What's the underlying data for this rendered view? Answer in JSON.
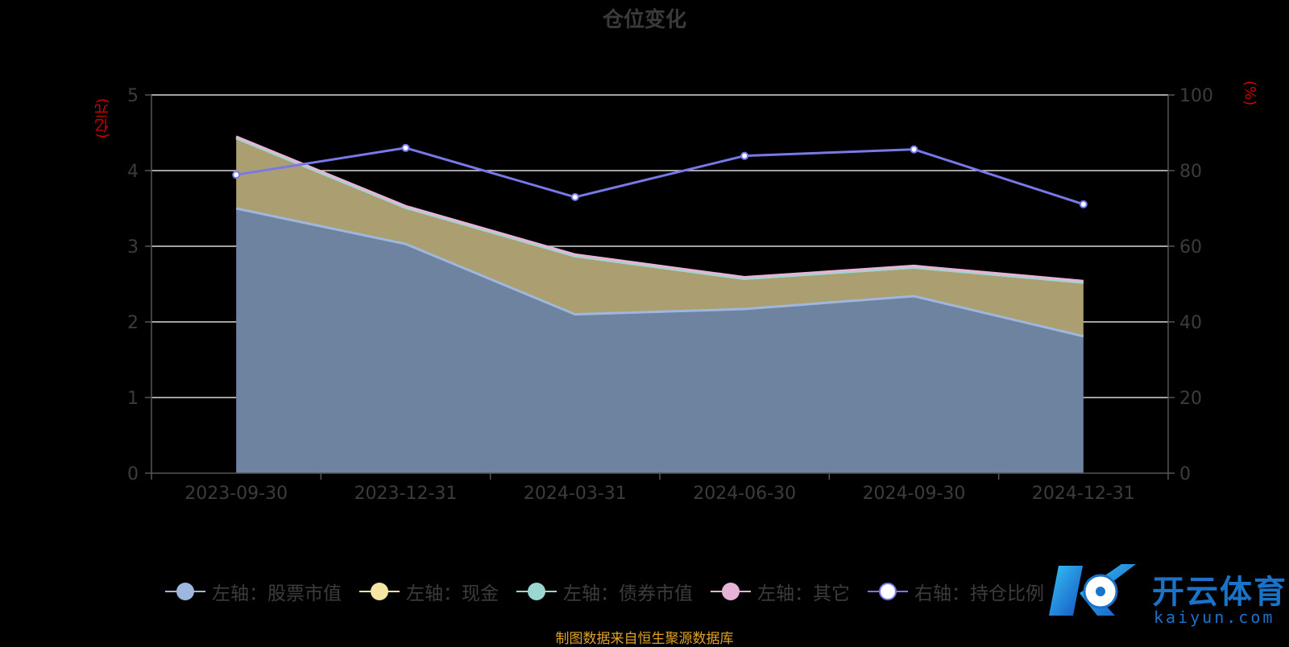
{
  "chart_data": {
    "type": "area",
    "title": "仓位变化",
    "left_unit": "(亿元)",
    "right_unit": "(%)",
    "categories": [
      "2023-09-30",
      "2023-12-31",
      "2024-03-31",
      "2024-06-30",
      "2024-09-30",
      "2024-12-31"
    ],
    "left_axis": {
      "min": 0,
      "max": 5,
      "ticks": [
        "0",
        "1",
        "2",
        "3",
        "4",
        "5"
      ]
    },
    "right_axis": {
      "min": 0,
      "max": 100,
      "ticks": [
        "0",
        "20",
        "40",
        "60",
        "80",
        "100"
      ]
    },
    "grid": true,
    "stacked": true,
    "series": [
      {
        "name": "左轴：股票市值",
        "axis": "left",
        "kind": "area",
        "color": "#9db7de",
        "fill": "#6e83a0",
        "values": [
          3.5,
          3.03,
          2.1,
          2.17,
          2.34,
          1.81
        ]
      },
      {
        "name": "左轴：现金",
        "axis": "left",
        "kind": "area",
        "color": "#f5e6a4",
        "fill": "#ab9f72",
        "values": [
          0.93,
          0.48,
          0.77,
          0.4,
          0.38,
          0.71
        ]
      },
      {
        "name": "左轴：债券市值",
        "axis": "left",
        "kind": "area",
        "color": "#9bd6d3",
        "fill": "#9bd6d3",
        "values": [
          0,
          0,
          0,
          0,
          0,
          0
        ]
      },
      {
        "name": "左轴：其它",
        "axis": "left",
        "kind": "area",
        "color": "#e8b4d6",
        "fill": "#e8b4d6",
        "values": [
          0.02,
          0.02,
          0.02,
          0.02,
          0.02,
          0.02
        ]
      },
      {
        "name": "右轴：持仓比例",
        "axis": "right",
        "kind": "line",
        "color": "#7779e8",
        "values": [
          78.9,
          86.0,
          73.0,
          83.9,
          85.6,
          71.1
        ]
      }
    ],
    "legend_position": "bottom"
  },
  "source_note": "制图数据来自恒生聚源数据库",
  "watermark": {
    "text": "开云体育",
    "sub": "kaiyun.com",
    "logo": "K"
  }
}
